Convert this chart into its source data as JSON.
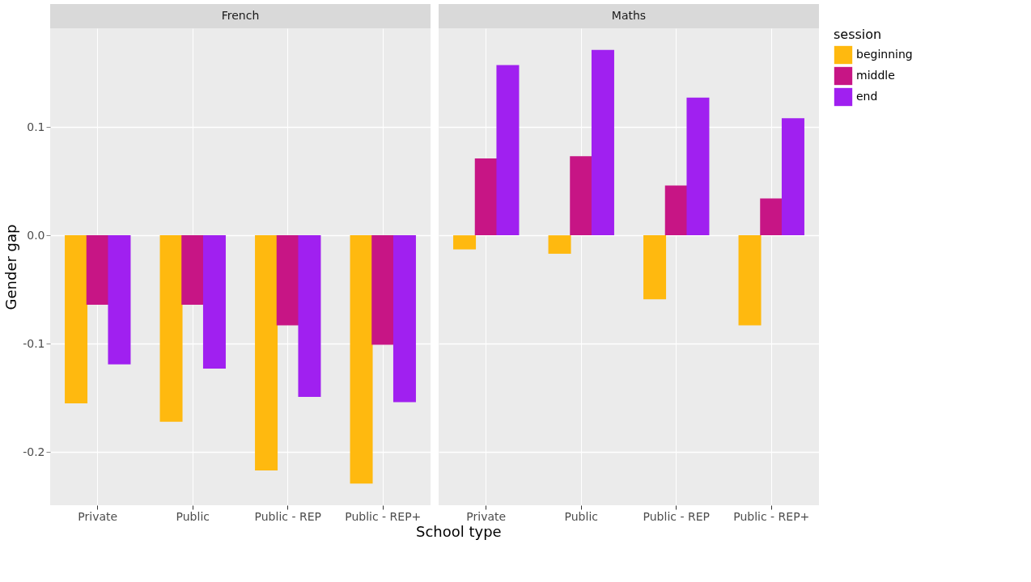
{
  "chart_data": [
    {
      "type": "bar",
      "title": "French",
      "ylabel": "Gender gap",
      "xlabel": "School type",
      "categories": [
        "Private",
        "Public",
        "Public - REP",
        "Public - REP+"
      ],
      "series": [
        {
          "name": "beginning",
          "color": "#ffb90f",
          "values": [
            -0.155,
            -0.172,
            -0.217,
            -0.229
          ]
        },
        {
          "name": "middle",
          "color": "#c71585",
          "values": [
            -0.064,
            -0.064,
            -0.083,
            -0.101
          ]
        },
        {
          "name": "end",
          "color": "#a020f0",
          "values": [
            -0.119,
            -0.123,
            -0.149,
            -0.154
          ]
        }
      ],
      "ylim": [
        -0.249,
        0.191
      ],
      "yticks": [
        -0.2,
        -0.1,
        {
          "value": 0,
          "label": "0.0"
        },
        0.1
      ],
      "grid": true,
      "legend": "right"
    },
    {
      "type": "bar",
      "title": "Maths",
      "legend_title": "session",
      "categories": [
        "Private",
        "Public",
        "Public - REP",
        "Public - REP+"
      ],
      "series": [
        {
          "name": "beginning",
          "color": "#ffb90f",
          "values": [
            -0.013,
            -0.017,
            -0.059,
            -0.083
          ]
        },
        {
          "name": "middle",
          "color": "#c71585",
          "values": [
            0.071,
            0.073,
            0.046,
            0.034
          ]
        },
        {
          "name": "end",
          "color": "#a020f0",
          "values": [
            0.157,
            0.171,
            0.127,
            0.108
          ]
        }
      ],
      "ylim": [
        -0.249,
        0.191
      ],
      "yticks": [
        -0.2,
        -0.1,
        0,
        0.1
      ],
      "grid": true,
      "legend": "right",
      "tick_labels": "x"
    }
  ]
}
